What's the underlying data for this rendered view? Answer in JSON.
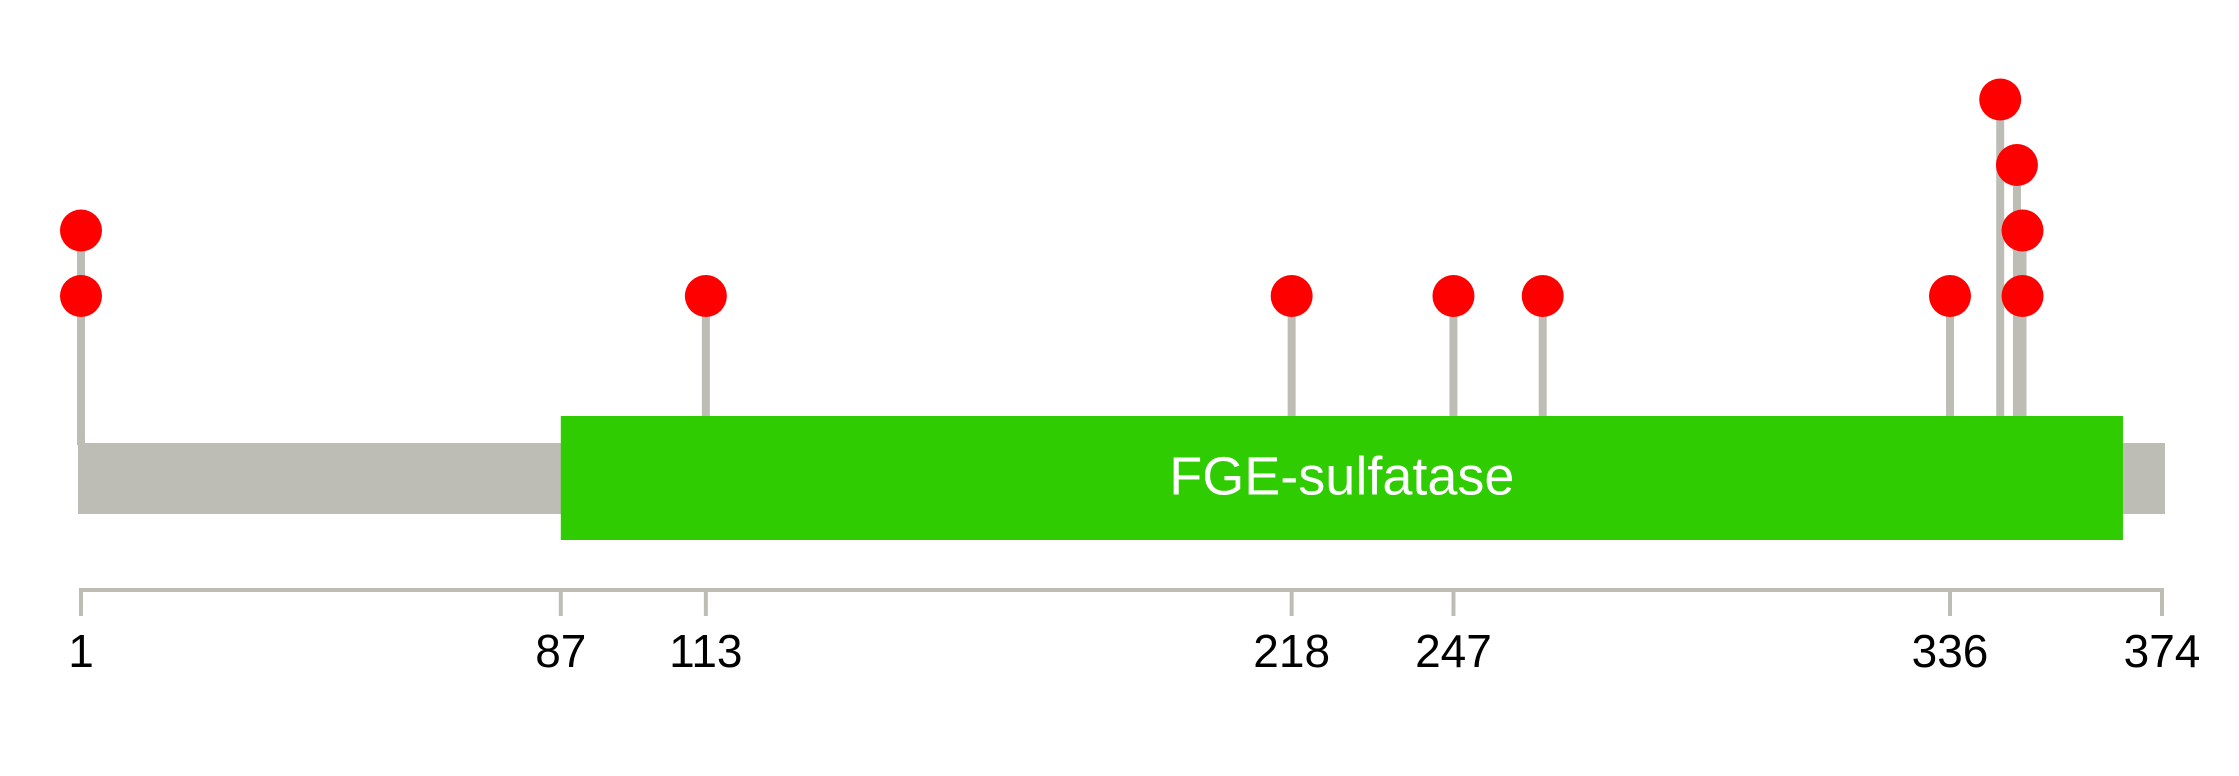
{
  "chart_data": {
    "type": "lollipop",
    "xlim": [
      1,
      374
    ],
    "xticks": [
      1,
      87,
      113,
      218,
      247,
      336,
      374
    ],
    "backbone_color": "#bdbdb5",
    "domains": [
      {
        "name": "FGE-sulfatase",
        "start": 87,
        "end": 367,
        "color": "#2ecc00"
      }
    ],
    "series": [
      {
        "color": "#ff0000",
        "x": [
          1,
          1,
          113,
          218,
          247,
          263,
          336,
          345,
          348,
          349,
          349
        ],
        "values": [
          1,
          2,
          1,
          1,
          1,
          1,
          1,
          4,
          3,
          2,
          1
        ]
      }
    ]
  }
}
